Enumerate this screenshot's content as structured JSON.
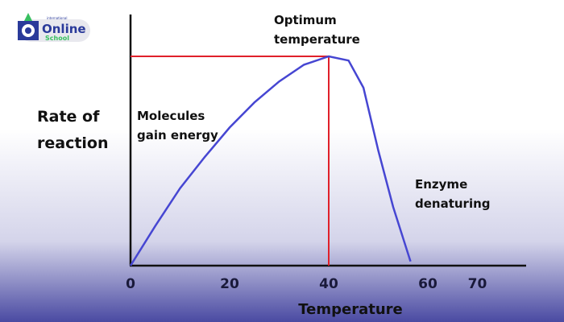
{
  "logo": {
    "small_text": "international",
    "line1": "Online",
    "line2": "School"
  },
  "chart_data": {
    "type": "line",
    "xlabel": "Temperature",
    "ylabel": "Rate of reaction",
    "ylabel_lines": [
      "Rate of",
      "reaction"
    ],
    "xticks": [
      0,
      20,
      40,
      60,
      70
    ],
    "xlim": [
      0,
      77
    ],
    "ylim": [
      0,
      1.2
    ],
    "grid": false,
    "series": [
      {
        "color": "#4646d2",
        "x": [
          0,
          5,
          10,
          15,
          20,
          25,
          30,
          35,
          40,
          44,
          47,
          50,
          53,
          56.5
        ],
        "y": [
          0,
          0.19,
          0.37,
          0.52,
          0.66,
          0.78,
          0.88,
          0.96,
          1.0,
          0.98,
          0.85,
          0.55,
          0.28,
          0.02
        ]
      }
    ],
    "optimum_marker": {
      "x": 40,
      "y": 1.0,
      "color": "#e0202a"
    },
    "annotations": [
      {
        "lines": [
          "Optimum",
          "temperature"
        ]
      },
      {
        "lines": [
          "Molecules",
          "gain energy"
        ]
      },
      {
        "lines": [
          "Enzyme",
          "denaturing"
        ]
      }
    ],
    "axis_label_color": "#2a2a6e"
  }
}
